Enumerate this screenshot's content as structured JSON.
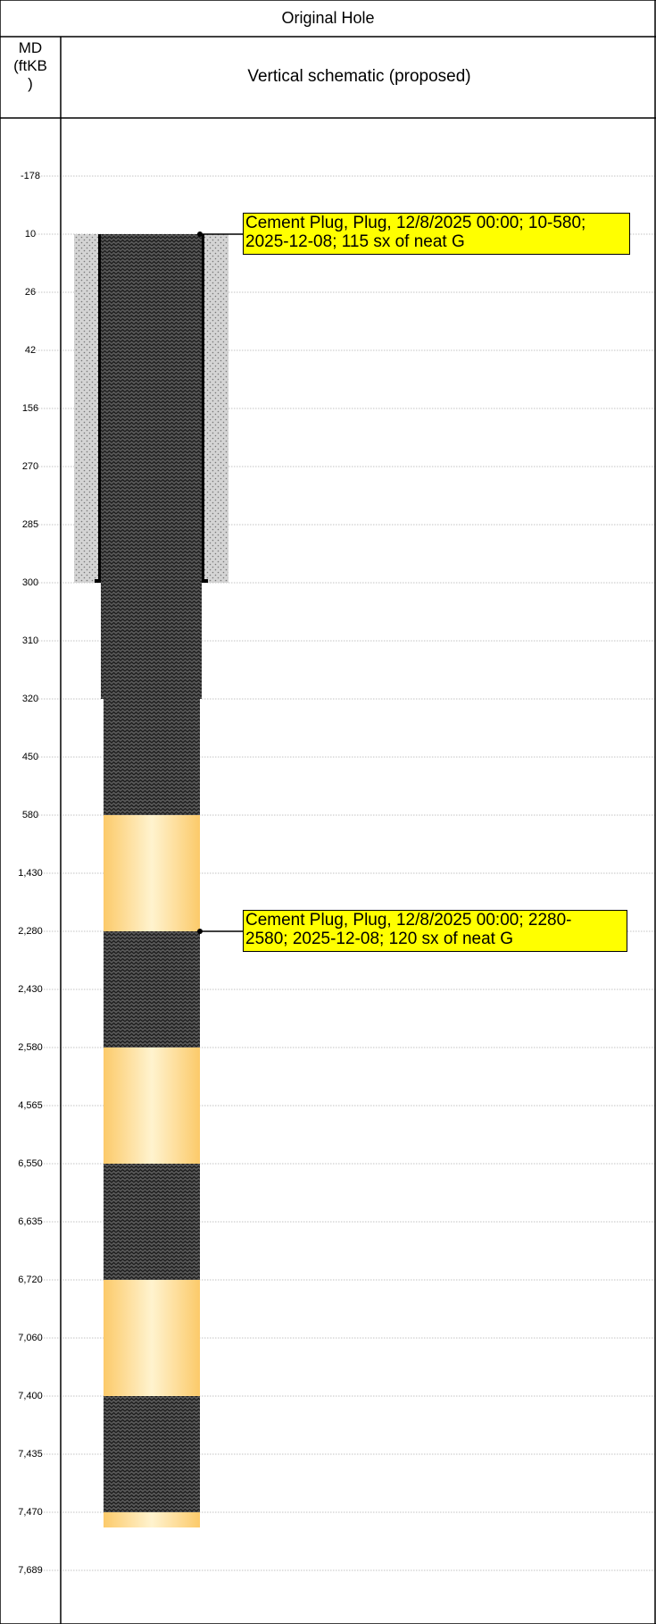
{
  "header": {
    "title": "Original Hole",
    "md_label_line1": "MD",
    "md_label_line2": "(ftKB",
    "md_label_line3": ")",
    "schematic_label": "Vertical schematic (proposed)"
  },
  "depth_ticks": [
    "-178",
    "10",
    "26",
    "42",
    "156",
    "270",
    "285",
    "300",
    "310",
    "320",
    "450",
    "580",
    "1,430",
    "2,280",
    "2,430",
    "2,580",
    "4,565",
    "6,550",
    "6,635",
    "6,720",
    "7,060",
    "7,400",
    "7,435",
    "7,470",
    "7,689"
  ],
  "callouts": [
    {
      "line1": "Cement Plug, Plug, 12/8/2025 00:00; 10-580;",
      "line2": "2025-12-08; 115 sx of neat G"
    },
    {
      "line1": "Cement Plug, Plug, 12/8/2025 00:00; 2280-",
      "line2": "2580; 2025-12-08; 120 sx of neat G"
    }
  ],
  "colors": {
    "cement": "#5a5a5a",
    "open_hole": "#fdd88a",
    "conductor_fill": "#d0d0d0",
    "callout_bg": "#ffff00",
    "grid": "#b0b0b0"
  }
}
